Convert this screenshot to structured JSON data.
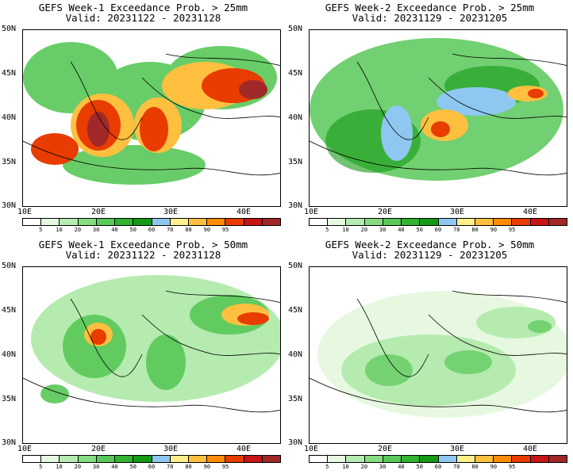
{
  "panels": [
    {
      "title1": "GEFS Week-1 Exceedance Prob. > 25mm",
      "title2": "Valid: 20231122 - 20231128"
    },
    {
      "title1": "GEFS Week-2 Exceedance Prob. > 25mm",
      "title2": "Valid: 20231129 - 20231205"
    },
    {
      "title1": "GEFS Week-1 Exceedance Prob. > 50mm",
      "title2": "Valid: 20231122 - 20231128"
    },
    {
      "title1": "GEFS Week-2 Exceedance Prob. > 50mm",
      "title2": "Valid: 20231129 - 20231205"
    }
  ],
  "axes": {
    "lat_labels": [
      "50N",
      "45N",
      "40N",
      "35N",
      "30N"
    ],
    "lon_labels": [
      "10E",
      "20E",
      "30E",
      "40E"
    ]
  },
  "colorbar": {
    "ticks": [
      "5",
      "10",
      "20",
      "30",
      "40",
      "50",
      "60",
      "70",
      "80",
      "90",
      "95"
    ],
    "colors": [
      "#ffffff",
      "#e6f9e0",
      "#b5ebaf",
      "#86dc80",
      "#58c858",
      "#32b332",
      "#149a14",
      "#8ec8f0",
      "#fff08c",
      "#ffc040",
      "#ff8c00",
      "#e83c00",
      "#c81414",
      "#a02828"
    ]
  }
}
